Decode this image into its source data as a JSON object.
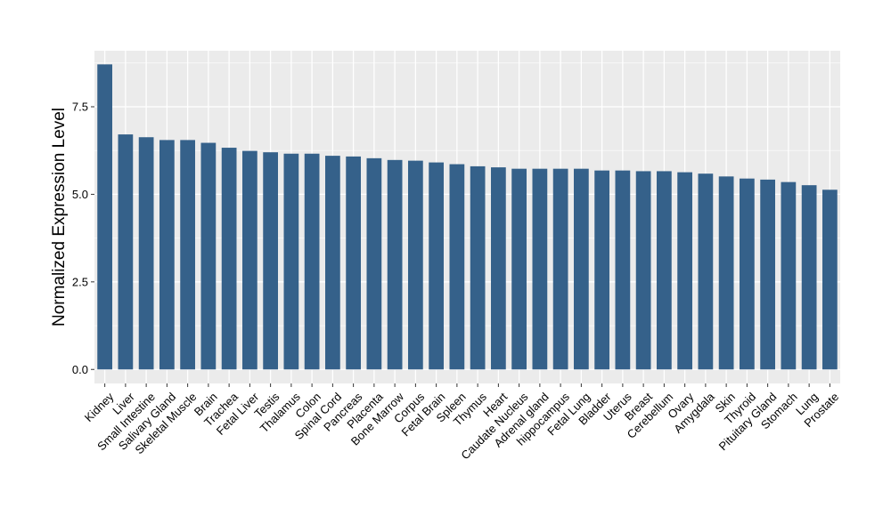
{
  "chart_data": {
    "type": "bar",
    "title": "",
    "xlabel": "",
    "ylabel": "Normalized Expression Level",
    "ylim": [
      -0.4,
      9.1
    ],
    "yticks": [
      0.0,
      2.5,
      5.0,
      7.5
    ],
    "ytick_labels": [
      "0.0",
      "2.5",
      "5.0",
      "7.5"
    ],
    "grid": true,
    "legend": "none",
    "colors": {
      "bar": "#35618a",
      "panel": "#ebebeb",
      "grid": "#ffffff"
    },
    "categories": [
      "Kidney",
      "Liver",
      "Small Intestine",
      "Salivary Gland",
      "Skeletal Muscle",
      "Brain",
      "Trachea",
      "Fetal Liver",
      "Testis",
      "Thalamus",
      "Colon",
      "Spinal Cord",
      "Pancreas",
      "Placenta",
      "Bone Marrow",
      "Corpus",
      "Fetal Brain",
      "Spleen",
      "Thymus",
      "Heart",
      "Caudate Nucleus",
      "Adrenal gland",
      "hippocampus",
      "Fetal Lung",
      "Bladder",
      "Uterus",
      "Breast",
      "Cerebellum",
      "Ovary",
      "Amygdala",
      "Skin",
      "Thyroid",
      "Pituitary Gland",
      "Stomach",
      "Lung",
      "Prostate"
    ],
    "values": [
      8.71,
      6.71,
      6.63,
      6.55,
      6.55,
      6.47,
      6.33,
      6.24,
      6.2,
      6.16,
      6.16,
      6.1,
      6.08,
      6.03,
      5.98,
      5.96,
      5.91,
      5.86,
      5.8,
      5.77,
      5.73,
      5.73,
      5.73,
      5.73,
      5.68,
      5.68,
      5.66,
      5.66,
      5.63,
      5.59,
      5.51,
      5.45,
      5.42,
      5.35,
      5.26,
      5.13
    ]
  }
}
